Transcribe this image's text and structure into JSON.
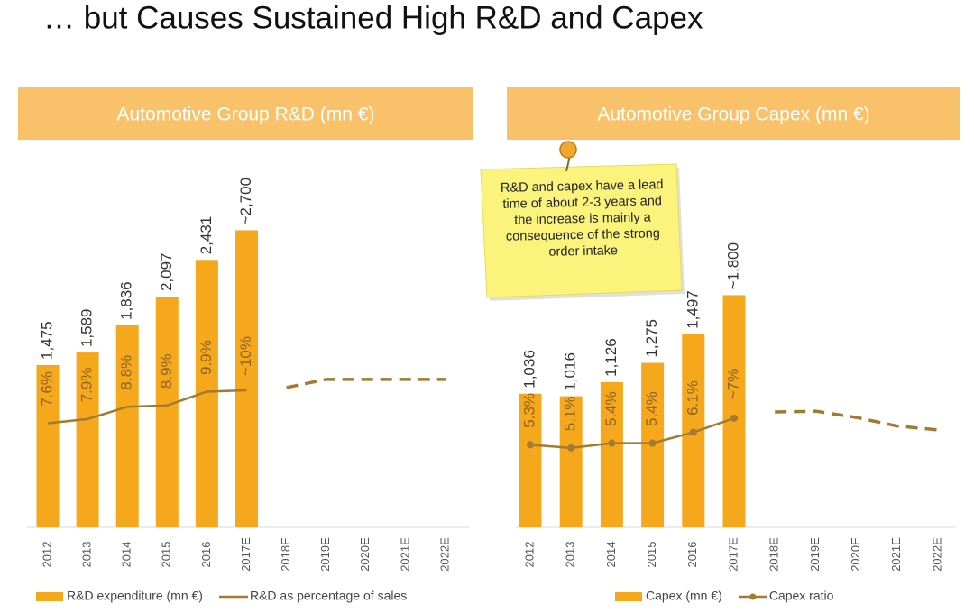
{
  "title": "… but Causes Sustained High R&D and Capex",
  "note": "R&D and capex have a lead time of about 2-3 years and the increase is mainly a consequence of the strong order intake",
  "chart_data": [
    {
      "type": "bar",
      "title": "Automotive Group R&D (mn €)",
      "categories": [
        "2012",
        "2013",
        "2014",
        "2015",
        "2016",
        "2017E",
        "2018E",
        "2019E",
        "2020E",
        "2021E",
        "2022E"
      ],
      "ylim": [
        0,
        3400
      ],
      "y2lim": [
        0,
        27.3
      ],
      "markers": false,
      "series": [
        {
          "name": "R&D expenditure (mn €)",
          "type": "bar",
          "color": "#f6a81c",
          "values": [
            1475,
            1589,
            1836,
            2097,
            2431,
            2700,
            null,
            null,
            null,
            null,
            null
          ],
          "value_labels": [
            "1,475",
            "1,589",
            "1,836",
            "2,097",
            "2,431",
            "~2,700",
            null,
            null,
            null,
            null,
            null
          ]
        },
        {
          "name": "R&D as percentage of sales",
          "type": "line",
          "axis": "y2",
          "color": "#a27a30",
          "values": [
            7.6,
            7.9,
            8.8,
            8.9,
            9.9,
            10,
            null,
            null,
            null,
            null,
            null
          ],
          "value_labels": [
            "7.6%",
            "7.9%",
            "8.8%",
            "8.9%",
            "9.9%",
            "~10%",
            null,
            null,
            null,
            null,
            null
          ]
        },
        {
          "type": "line",
          "axis": "y2",
          "color": "#a27a30",
          "dashed": true,
          "values": [
            null,
            null,
            null,
            null,
            null,
            null,
            10.2,
            10.8,
            10.8,
            10.8,
            10.8
          ]
        }
      ]
    },
    {
      "type": "bar",
      "title": "Automotive Group Capex (mn €)",
      "categories": [
        "2012",
        "2013",
        "2014",
        "2015",
        "2016",
        "2017E",
        "2018E",
        "2019E",
        "2020E",
        "2021E",
        "2022E"
      ],
      "ylim": [
        0,
        2900
      ],
      "y2lim": [
        0,
        24
      ],
      "markers": true,
      "series": [
        {
          "name": "Capex  (mn €)",
          "type": "bar",
          "color": "#f6a81c",
          "values": [
            1036,
            1016,
            1126,
            1275,
            1497,
            1800,
            null,
            null,
            null,
            null,
            null
          ],
          "value_labels": [
            "1,036",
            "1,016",
            "1,126",
            "1,275",
            "1,497",
            "~1,800",
            null,
            null,
            null,
            null,
            null
          ]
        },
        {
          "name": "Capex ratio",
          "type": "line",
          "axis": "y2",
          "color": "#a27a30",
          "values": [
            5.3,
            5.1,
            5.4,
            5.4,
            6.1,
            7,
            null,
            null,
            null,
            null,
            null
          ],
          "value_labels": [
            "5.3%",
            "5.1%",
            "5.4%",
            "5.4%",
            "6.1%",
            "~7%",
            null,
            null,
            null,
            null,
            null
          ]
        },
        {
          "type": "line",
          "axis": "y2",
          "color": "#a27a30",
          "dashed": true,
          "values": [
            null,
            null,
            null,
            null,
            null,
            null,
            7.4,
            7.45,
            7.05,
            6.5,
            6.25
          ]
        }
      ]
    }
  ]
}
